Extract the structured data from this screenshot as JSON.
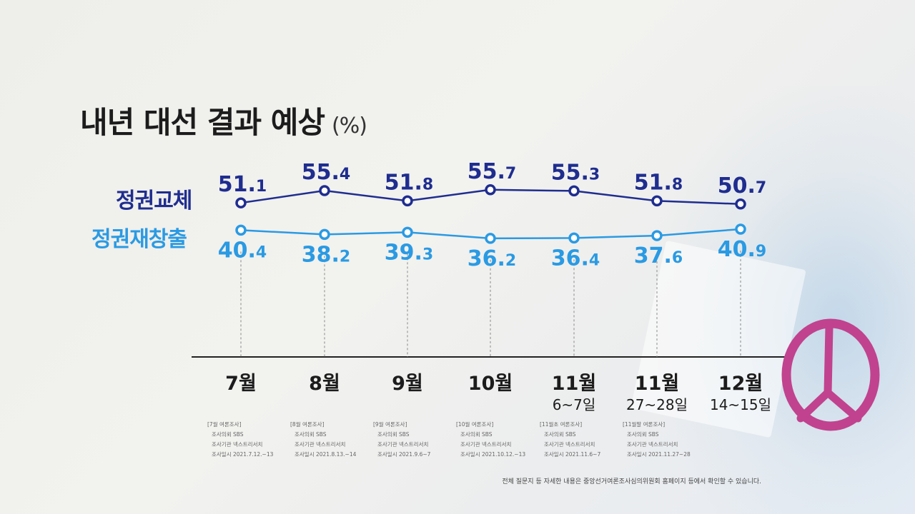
{
  "title": "내년 대선 결과 예상",
  "unit": "(%)",
  "colors": {
    "series1": "#1f2d8f",
    "series2": "#2a9ae3",
    "axis": "#222222",
    "stamp": "#c1428e"
  },
  "icons": {
    "stamp": "election-stamp-icon"
  },
  "chart_data": {
    "type": "line",
    "categories": [
      "7월",
      "8월",
      "9월",
      "10월",
      "11월",
      "11월",
      "12월"
    ],
    "sub_labels": [
      "",
      "",
      "",
      "",
      "6~7일",
      "27~28일",
      "14~15일"
    ],
    "series": [
      {
        "name": "정권교체",
        "values": [
          51.1,
          55.4,
          51.8,
          55.7,
          55.3,
          51.8,
          50.7
        ]
      },
      {
        "name": "정권재창출",
        "values": [
          40.4,
          38.2,
          39.3,
          36.2,
          36.4,
          37.6,
          40.9
        ]
      }
    ]
  },
  "notes": [
    [
      "[7월 여론조사]",
      "조사의뢰 SBS",
      "조사기관 넥스트리서치",
      "조사일시 2021.7.12.~13"
    ],
    [
      "[8월 여론조사]",
      "조사의뢰 SBS",
      "조사기관 넥스트리서치",
      "조사일시 2021.8.13.~14"
    ],
    [
      "[9월 여론조사]",
      "조사의뢰 SBS",
      "조사기관 넥스트리서치",
      "조사일시 2021.9.6~7"
    ],
    [
      "[10월 여론조사]",
      "조사의뢰 SBS",
      "조사기관 넥스트리서치",
      "조사일시 2021.10.12.~13"
    ],
    [
      "[11월초 여론조사]",
      "조사의뢰 SBS",
      "조사기관 넥스트리서치",
      "조사일시 2021.11.6~7"
    ],
    [
      "[11월말 여론조사]",
      "조사의뢰 SBS",
      "조사기관 넥스트리서치",
      "조사일시 2021.11.27~28"
    ]
  ],
  "footer": "전체 질문지 등 자세한 내용은 중앙선거여론조사심의위원회 홈페이지 등에서 확인할 수 있습니다."
}
